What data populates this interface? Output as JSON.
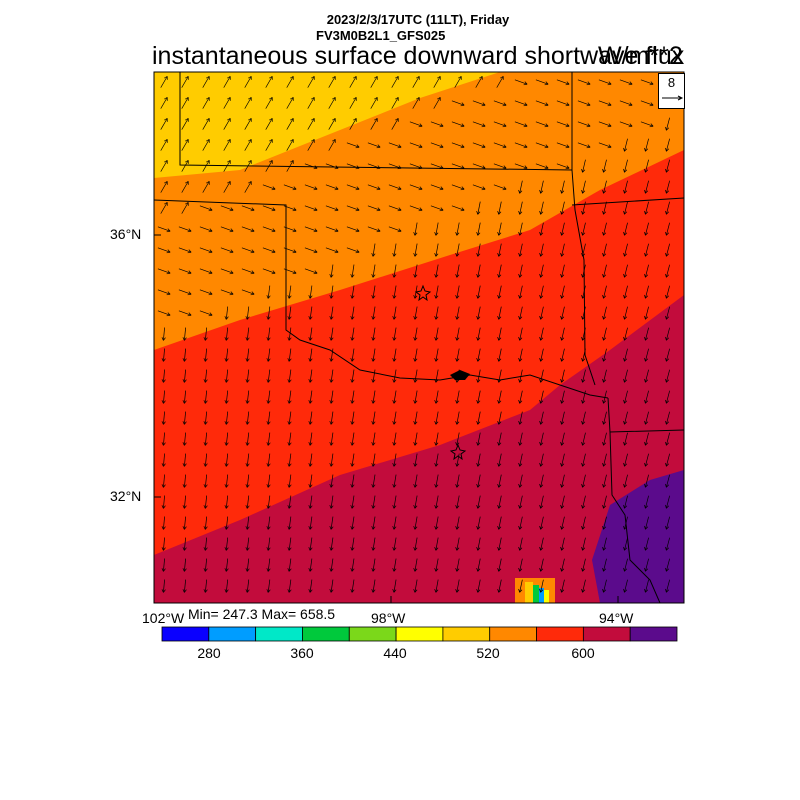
{
  "header": {
    "date_line": "2023/2/3/17UTC (11LT), Friday",
    "model_line": "FV3M0B2L1_GFS025",
    "title": "instantaneous surface downward shortwave flux",
    "units": "W/m**2"
  },
  "stats": {
    "text": "Min= 247.3 Max= 658.5"
  },
  "axes": {
    "lat_labels": [
      "36°N",
      "32°N"
    ],
    "lon_labels": [
      "102°W",
      "98°W",
      "94°W"
    ]
  },
  "vector_reference": {
    "value": "8"
  },
  "colorbar": {
    "colors": [
      "#0a00ff",
      "#009dff",
      "#00e8c8",
      "#00c93c",
      "#7bd81a",
      "#ffff00",
      "#ffcc00",
      "#ff8800",
      "#ff2a0a",
      "#c20c3c",
      "#5b0b8c"
    ],
    "labels": [
      "280",
      "360",
      "440",
      "520",
      "600"
    ]
  },
  "map": {
    "shaded_bands": [
      "#ffcc00",
      "#ff8800",
      "#ff2a0a",
      "#c20c3c",
      "#5b0b8c"
    ],
    "stations": [
      "star",
      "star"
    ]
  }
}
